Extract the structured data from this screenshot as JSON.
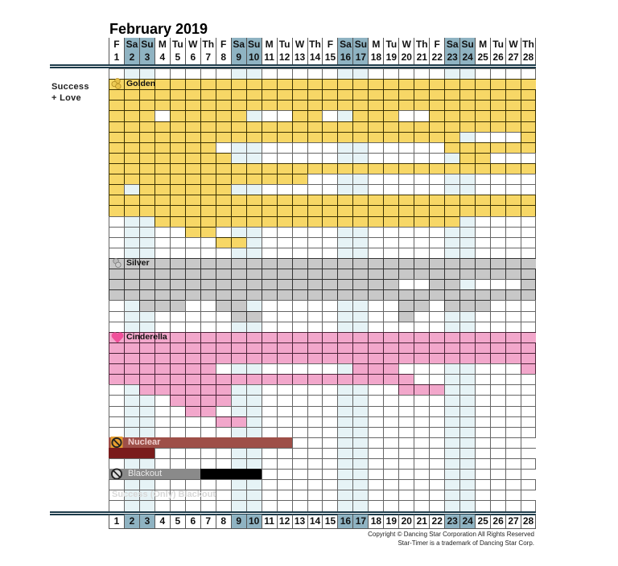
{
  "header": {
    "title": "February 2019",
    "days": [
      {
        "name": "F",
        "date": "1",
        "weekend": false
      },
      {
        "name": "Sa",
        "date": "2",
        "weekend": true
      },
      {
        "name": "Su",
        "date": "3",
        "weekend": true
      },
      {
        "name": "M",
        "date": "4",
        "weekend": false
      },
      {
        "name": "Tu",
        "date": "5",
        "weekend": false
      },
      {
        "name": "W",
        "date": "6",
        "weekend": false
      },
      {
        "name": "Th",
        "date": "7",
        "weekend": false
      },
      {
        "name": "F",
        "date": "8",
        "weekend": false
      },
      {
        "name": "Sa",
        "date": "9",
        "weekend": true
      },
      {
        "name": "Su",
        "date": "10",
        "weekend": true
      },
      {
        "name": "M",
        "date": "11",
        "weekend": false
      },
      {
        "name": "Tu",
        "date": "12",
        "weekend": false
      },
      {
        "name": "W",
        "date": "13",
        "weekend": false
      },
      {
        "name": "Th",
        "date": "14",
        "weekend": false
      },
      {
        "name": "F",
        "date": "15",
        "weekend": false
      },
      {
        "name": "Sa",
        "date": "16",
        "weekend": true
      },
      {
        "name": "Su",
        "date": "17",
        "weekend": true
      },
      {
        "name": "M",
        "date": "18",
        "weekend": false
      },
      {
        "name": "Tu",
        "date": "19",
        "weekend": false
      },
      {
        "name": "W",
        "date": "20",
        "weekend": false
      },
      {
        "name": "Th",
        "date": "21",
        "weekend": false
      },
      {
        "name": "F",
        "date": "22",
        "weekend": false
      },
      {
        "name": "Sa",
        "date": "23",
        "weekend": true
      },
      {
        "name": "Su",
        "date": "24",
        "weekend": true
      },
      {
        "name": "M",
        "date": "25",
        "weekend": false
      },
      {
        "name": "Tu",
        "date": "26",
        "weekend": false
      },
      {
        "name": "W",
        "date": "27",
        "weekend": false
      },
      {
        "name": "Th",
        "date": "28",
        "weekend": false
      }
    ]
  },
  "side_label": {
    "line1": "Success",
    "line2": "+ Love"
  },
  "colors": {
    "golden": "#f7d766",
    "silver": "#c8c8c8",
    "cinderella": "#f2a7cb",
    "nuclear": "#9e4f48",
    "nuclear_dark": "#7a1c1c",
    "blackout_gray": "#8a8a8a",
    "blackout_black": "#000000",
    "weekend_header": "#8fb3c2",
    "weekend_cell": "#e6f3f6"
  },
  "sections": {
    "golden": {
      "label": "Golden",
      "icon": "gold-coins-icon",
      "row": 1
    },
    "silver": {
      "label": "Silver",
      "icon": "silver-coins-icon",
      "row": 18
    },
    "cinderella": {
      "label": "Cinderella",
      "icon": "heart-icon",
      "row": 25
    },
    "nuclear": {
      "label": "Nuclear",
      "icon": "prohibited-icon",
      "row": 35,
      "bar_cols": [
        1,
        12
      ],
      "dark_cols": [
        1,
        3
      ]
    },
    "blackout": {
      "label": "Blackout",
      "icon": "prohibited-icon",
      "row": 38,
      "gray_cols": [
        1,
        6
      ],
      "black_cols": [
        7,
        10
      ]
    },
    "success_only_blackout": {
      "label": "Success (Only) Blackout",
      "row": 40
    }
  },
  "grid_rows": [
    "............................",
    "GGGGGGGGGGGGGGGGGGGGGGGGGGGG",
    "GGGGGGGGGGGGGGGGGGGGGGGGGGGG",
    "GGGGGGGGGGGGGGGGGGGGGGGGGGGG",
    "GGG.GGGGG...GG..GGG..GGGGGGG",
    "GGGGGGGGGGGGGGGGGGGGGGGGGGGG",
    "GGGGGGGGGGGGGGGGGGGGGGG....G",
    "GGGGGGG...............GGGGGG",
    "GGGGGGGG...............GG...",
    "GGGGGGGGGGGGGGGGGGGGGGGGGGGG",
    "GGGGGGGGGGGGG...............",
    "G.GGGGGG....................",
    "GGGGGGGGGGGGGGGGGGGGGGGGGGGG",
    "GGGGGGGGGGGGGGGGGGGGGGGGGGGG",
    "...GGGGGGGGGGGGGGGGGGGG.....",
    ".....GG.....................",
    ".......GG...................",
    "............................",
    "SSSSSSSSSSSSSSSSSSSSSSSSSSSS",
    "SSSSSSSSSSSSSSSSSSSSSSSSSSSS",
    "SSSSSSSSSSSSSSSSSSS..SS....S",
    "SSSSSSSSSSSSSSSSSSSSSSSSSSSS",
    "..SSS..SS..........SS.SSS...",
    "........SS.........S........",
    "............................",
    "PPPPPPPPPPPPPPPPPPPPPPPPPPPP",
    "PPPPPPPPPPPPPPPPPPPPPPPPPPPP",
    "PPPPPPPPPPPPPPPPPPPPPPPPPPPP",
    "PPPPPPP.........PPP........P",
    "PPPPPPPPPPPPPPPPPPPP........",
    "..PPPPPP...........PPP......",
    "....PPPP....................",
    ".....PP.....................",
    ".......PP...................",
    "............................",
    "............................",
    "............................",
    "............................",
    "............................",
    "............................",
    "............................",
    "............................"
  ],
  "footer": {
    "copyright": "Copyright © Dancing Star Corporation All Rights Reserved",
    "trademark": "Star-Timer is a trademark of Dancing Star Corp."
  }
}
